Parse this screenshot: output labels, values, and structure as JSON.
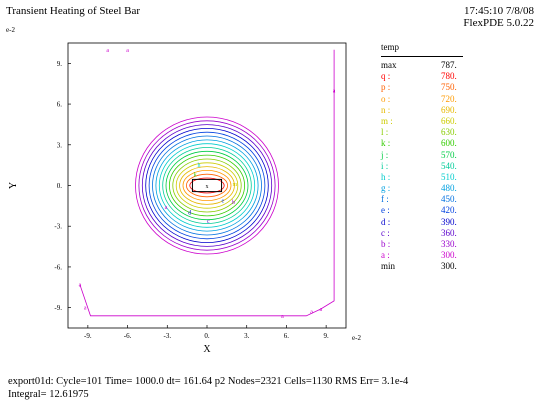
{
  "header": {
    "title": "Transient Heating of Steel Bar",
    "time_date": "17:45:10 7/8/08",
    "version": "FlexPDE 5.0.22"
  },
  "chart_data": {
    "type": "contour",
    "title": "Transient Heating of Steel Bar",
    "xlabel": "X",
    "ylabel": "Y",
    "x_exponent_label": "e-2",
    "y_exponent_label": "e-2",
    "xlim": [
      -10.5,
      10.5
    ],
    "ylim": [
      -10.5,
      10.5
    ],
    "x_ticks": [
      "-9.",
      "-6.",
      "-3.",
      "0.",
      "3.",
      "6.",
      "9."
    ],
    "x_tick_values": [
      -9,
      -6,
      -3,
      0,
      3,
      6,
      9
    ],
    "y_ticks": [
      "9.",
      "6.",
      "3.",
      "0.",
      "-3.",
      "-6.",
      "-9."
    ],
    "y_tick_values": [
      9,
      6,
      3,
      0,
      -3,
      -6,
      -9
    ],
    "field": "temp",
    "levels": [
      {
        "label": "q",
        "value": 780,
        "color": "#ff0000"
      },
      {
        "label": "p",
        "value": 750,
        "color": "#ff6000"
      },
      {
        "label": "o",
        "value": 720,
        "color": "#ff9a00"
      },
      {
        "label": "n",
        "value": 690,
        "color": "#e6b800"
      },
      {
        "label": "m",
        "value": 660,
        "color": "#cccc00"
      },
      {
        "label": "l",
        "value": 630,
        "color": "#88cc00"
      },
      {
        "label": "k",
        "value": 600,
        "color": "#33cc00"
      },
      {
        "label": "j",
        "value": 570,
        "color": "#00cc44"
      },
      {
        "label": "i",
        "value": 540,
        "color": "#00cc99"
      },
      {
        "label": "h",
        "value": 510,
        "color": "#00cccc"
      },
      {
        "label": "g",
        "value": 480,
        "color": "#00a0e0"
      },
      {
        "label": "f",
        "value": 450,
        "color": "#0070e0"
      },
      {
        "label": "e",
        "value": 420,
        "color": "#0040e0"
      },
      {
        "label": "d",
        "value": 390,
        "color": "#0000cc"
      },
      {
        "label": "c",
        "value": 360,
        "color": "#5a00cc"
      },
      {
        "label": "b",
        "value": 330,
        "color": "#9900cc"
      },
      {
        "label": "a",
        "value": 300,
        "color": "#cc00cc"
      }
    ],
    "max": "787.",
    "min": "300.",
    "domain_outline": {
      "x": [
        -9.6,
        -8.8,
        7.5,
        8.6,
        9.6,
        9.6
      ],
      "y": [
        -7.3,
        -9.6,
        -9.6,
        -9.1,
        -8.5,
        10.0
      ]
    }
  },
  "legend": {
    "header": "temp",
    "rows": [
      {
        "label": "max",
        "value": "787.",
        "color": "#000000"
      },
      {
        "label": "q :",
        "value": "780.",
        "color": "#ff0000"
      },
      {
        "label": "p :",
        "value": "750.",
        "color": "#ff6000"
      },
      {
        "label": "o :",
        "value": "720.",
        "color": "#ff9a00"
      },
      {
        "label": "n :",
        "value": "690.",
        "color": "#e6b800"
      },
      {
        "label": "m :",
        "value": "660.",
        "color": "#cccc00"
      },
      {
        "label": "l :",
        "value": "630.",
        "color": "#88cc00"
      },
      {
        "label": "k :",
        "value": "600.",
        "color": "#33cc00"
      },
      {
        "label": "j :",
        "value": "570.",
        "color": "#00cc44"
      },
      {
        "label": "i :",
        "value": "540.",
        "color": "#00cc99"
      },
      {
        "label": "h :",
        "value": "510.",
        "color": "#00cccc"
      },
      {
        "label": "g :",
        "value": "480.",
        "color": "#00a0e0"
      },
      {
        "label": "f :",
        "value": "450.",
        "color": "#0070e0"
      },
      {
        "label": "e :",
        "value": "420.",
        "color": "#0040e0"
      },
      {
        "label": "d :",
        "value": "390.",
        "color": "#0000cc"
      },
      {
        "label": "c :",
        "value": "360.",
        "color": "#5a00cc"
      },
      {
        "label": "b :",
        "value": "330.",
        "color": "#9900cc"
      },
      {
        "label": "a :",
        "value": "300.",
        "color": "#cc00cc"
      },
      {
        "label": "min",
        "value": "300.",
        "color": "#000000"
      }
    ]
  },
  "footer": {
    "line1": "export01d:  Cycle=101  Time= 1000.0  dt= 161.64  p2  Nodes=2321 Cells=1130 RMS Err= 3.1e-4",
    "line2": "Integral=  12.61975"
  }
}
